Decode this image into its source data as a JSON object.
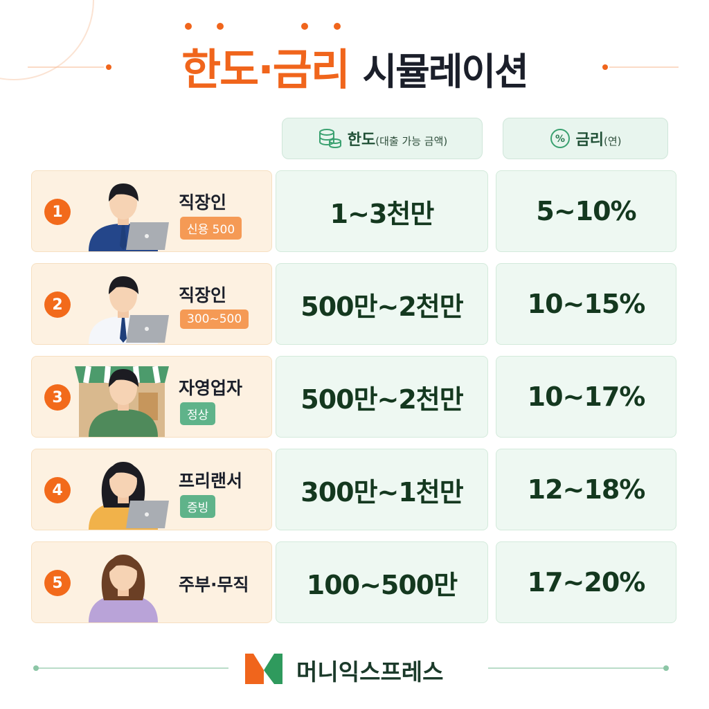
{
  "header": {
    "title_accent": "한도·금리",
    "title_rest": "시뮬레이션"
  },
  "table": {
    "columns": [
      {
        "label": "한도",
        "sub": "(대출 가능 금액)"
      },
      {
        "label": "금리",
        "sub": "(연)"
      }
    ],
    "rows": [
      {
        "num": "1",
        "job": "직장인",
        "tag": "신용 500",
        "limit": "1~3천만",
        "rate": "5~10%"
      },
      {
        "num": "2",
        "job": "직장인",
        "tag": "300~500",
        "limit": "500만~2천만",
        "rate": "10~15%"
      },
      {
        "num": "3",
        "job": "자영업자",
        "tag": "정상",
        "limit": "500만~2천만",
        "rate": "10~17%"
      },
      {
        "num": "4",
        "job": "프리랜서",
        "tag": "증빙",
        "limit": "300만~1천만",
        "rate": "12~18%"
      },
      {
        "num": "5",
        "job": "주부·무직",
        "limit": "100~500만",
        "rate": "17~20%"
      }
    ]
  },
  "footer": {
    "brand": "머니익스프레스"
  }
}
